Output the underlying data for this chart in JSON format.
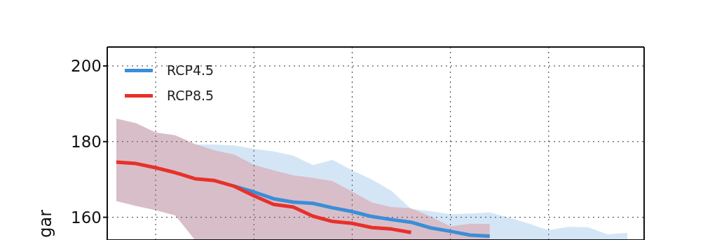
{
  "chart_data": {
    "type": "line",
    "ylabel": "gar",
    "legend": "top left",
    "grid": true,
    "line_style": "solid",
    "marker": "none",
    "categories": [
      null,
      null,
      null,
      null,
      null,
      null,
      null,
      null,
      null,
      null,
      null,
      null,
      null,
      null,
      null,
      null,
      null,
      null,
      null,
      null,
      null,
      null,
      null,
      null,
      null,
      null,
      null
    ],
    "ylim": [
      154,
      205
    ],
    "yticks": [
      160,
      180,
      200
    ],
    "series": [
      {
        "name": "RCP4.5",
        "color": "#3a8ed8",
        "values": [
          null,
          null,
          null,
          null,
          null,
          null,
          168.2,
          166.7,
          164.9,
          164.0,
          163.7,
          162.5,
          161.5,
          160.2,
          159.4,
          158.7,
          157.2,
          156.3,
          155.3,
          155.0,
          null,
          null,
          null,
          null,
          null,
          null,
          null
        ],
        "upper": [
          186.1,
          184.9,
          182.4,
          181.7,
          179.2,
          179.2,
          179.0,
          178.1,
          177.4,
          176.3,
          173.8,
          175.2,
          172.4,
          170.0,
          167.0,
          162.2,
          161.6,
          160.8,
          161.0,
          161.3,
          159.9,
          158.3,
          156.6,
          157.5,
          157.4,
          155.5,
          155.9
        ],
        "lower": [
          164.3,
          163.0,
          161.9,
          160.5,
          154,
          154,
          154,
          154,
          154,
          154,
          154,
          154,
          154,
          154,
          154,
          154,
          154,
          154,
          154,
          154,
          154,
          154,
          154,
          154,
          154,
          154,
          154
        ]
      },
      {
        "name": "RCP8.5",
        "color": "#e8302a",
        "values": [
          174.6,
          174.2,
          173.1,
          171.8,
          170.2,
          169.7,
          168.2,
          165.7,
          163.4,
          162.7,
          160.3,
          158.9,
          158.4,
          157.3,
          156.9,
          156.0,
          null,
          null,
          null,
          null,
          null,
          null,
          null,
          null,
          null,
          null,
          null
        ],
        "upper": [
          186.1,
          184.9,
          182.4,
          181.7,
          179.4,
          177.7,
          176.6,
          173.9,
          172.4,
          171.1,
          170.4,
          169.6,
          166.8,
          163.9,
          162.7,
          162.4,
          160.2,
          157.6,
          158.3,
          158.2,
          null,
          null,
          null,
          null,
          null,
          null,
          null
        ],
        "lower": [
          164.3,
          163.0,
          161.9,
          160.5,
          154,
          154,
          154,
          154,
          154,
          154,
          154,
          154,
          154,
          154,
          154,
          154,
          154,
          154,
          154,
          154,
          null,
          null,
          null,
          null,
          null,
          null,
          null
        ]
      }
    ]
  }
}
